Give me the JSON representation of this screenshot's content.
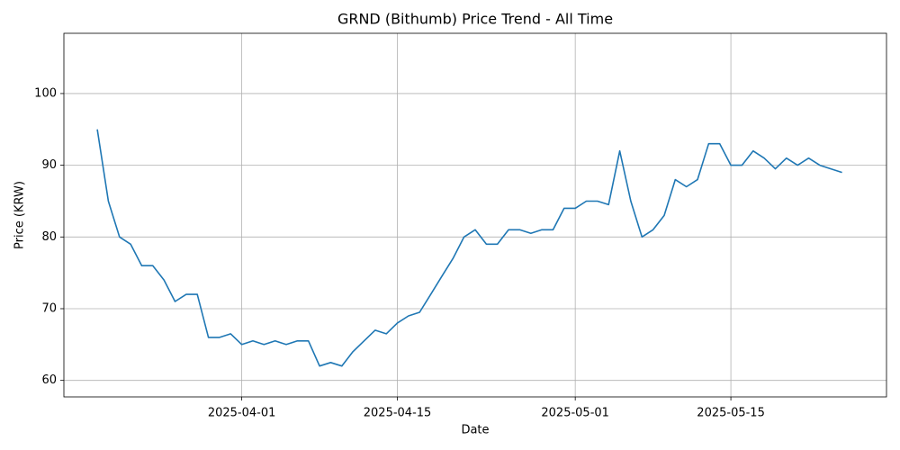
{
  "chart_data": {
    "type": "line",
    "title": "GRND (Bithumb) Price Trend - All Time",
    "x_label": "Date",
    "y_label": "Price (KRW)",
    "x": [
      "2025-03-19",
      "2025-03-20",
      "2025-03-21",
      "2025-03-22",
      "2025-03-23",
      "2025-03-24",
      "2025-03-25",
      "2025-03-26",
      "2025-03-27",
      "2025-03-28",
      "2025-03-29",
      "2025-03-30",
      "2025-03-31",
      "2025-04-01",
      "2025-04-02",
      "2025-04-03",
      "2025-04-04",
      "2025-04-05",
      "2025-04-06",
      "2025-04-07",
      "2025-04-08",
      "2025-04-09",
      "2025-04-10",
      "2025-04-11",
      "2025-04-12",
      "2025-04-13",
      "2025-04-14",
      "2025-04-15",
      "2025-04-16",
      "2025-04-17",
      "2025-04-18",
      "2025-04-19",
      "2025-04-20",
      "2025-04-21",
      "2025-04-22",
      "2025-04-23",
      "2025-04-24",
      "2025-04-25",
      "2025-04-26",
      "2025-04-27",
      "2025-04-28",
      "2025-04-29",
      "2025-04-30",
      "2025-05-01",
      "2025-05-02",
      "2025-05-03",
      "2025-05-04",
      "2025-05-05",
      "2025-05-06",
      "2025-05-07",
      "2025-05-08",
      "2025-05-09",
      "2025-05-10",
      "2025-05-11",
      "2025-05-12",
      "2025-05-13",
      "2025-05-14",
      "2025-05-15",
      "2025-05-16",
      "2025-05-17",
      "2025-05-18",
      "2025-05-19",
      "2025-05-20",
      "2025-05-21",
      "2025-05-22",
      "2025-05-23",
      "2025-05-24",
      "2025-05-25"
    ],
    "values": [
      95,
      85,
      80,
      79,
      76,
      76,
      74,
      71,
      72,
      72,
      66,
      66,
      66.5,
      65,
      65.5,
      65,
      65.5,
      65,
      65.5,
      65.5,
      62,
      62.5,
      62,
      64,
      65.5,
      67,
      66.5,
      68,
      69,
      69.5,
      72,
      74.5,
      77,
      80,
      81,
      79,
      79,
      81,
      81,
      80.5,
      81,
      81,
      84,
      84,
      85,
      85,
      84.5,
      92,
      85,
      80,
      81,
      83,
      88,
      87,
      88,
      93,
      93,
      90,
      90,
      92,
      91,
      89.5,
      91,
      90,
      91,
      90,
      89.5,
      89
    ],
    "color": "#1f77b4",
    "xlim": [
      "2025-03-16",
      "2025-05-29"
    ],
    "xticks": [
      "2025-04-01",
      "2025-04-15",
      "2025-05-01",
      "2025-05-15"
    ],
    "ylim": [
      57.7,
      108.4
    ],
    "yticks": [
      60,
      70,
      80,
      90,
      100
    ],
    "grid": true
  }
}
